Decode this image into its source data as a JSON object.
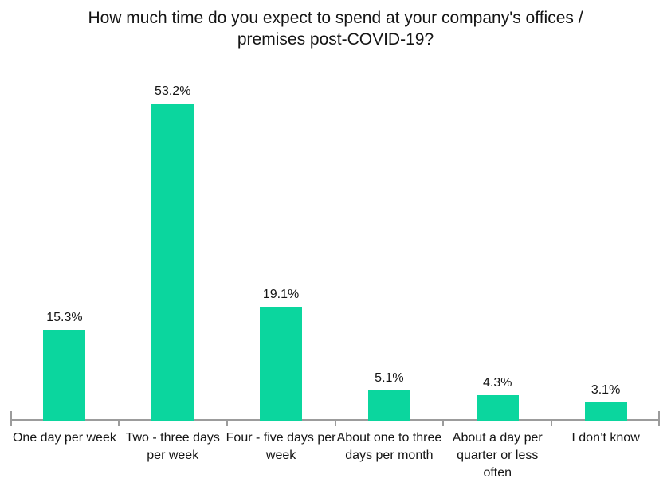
{
  "colors": {
    "bar": "#0bd69e",
    "axis": "#9c9c9c",
    "text": "#151515",
    "background": "#ffffff"
  },
  "display": {
    "title_lines": "How much time do you expect to spend at your company's offices /\npremises post-COVID-19?",
    "category_label_lines": [
      "One day per week",
      "Two - three days\nper week",
      "Four - five days per\nweek",
      "About one to three\ndays per month",
      "About a day per\nquarter or less\noften",
      "I don’t know"
    ]
  },
  "chart_data": {
    "type": "bar",
    "title": "How much time do you expect to spend at your company's offices / premises post-COVID-19?",
    "categories": [
      "One day per week",
      "Two - three days per week",
      "Four - five days per week",
      "About one to three days per month",
      "About a day per quarter or less often",
      "I don’t know"
    ],
    "values": [
      15.3,
      53.2,
      19.1,
      5.1,
      4.3,
      3.1
    ],
    "value_labels": [
      "15.3%",
      "53.2%",
      "19.1%",
      "5.1%",
      "4.3%",
      "3.1%"
    ],
    "xlabel": "",
    "ylabel": "",
    "ylim": [
      0,
      60
    ],
    "grid": false,
    "legend": false,
    "y_axis_visible": false,
    "data_labels_position": "above bars"
  }
}
